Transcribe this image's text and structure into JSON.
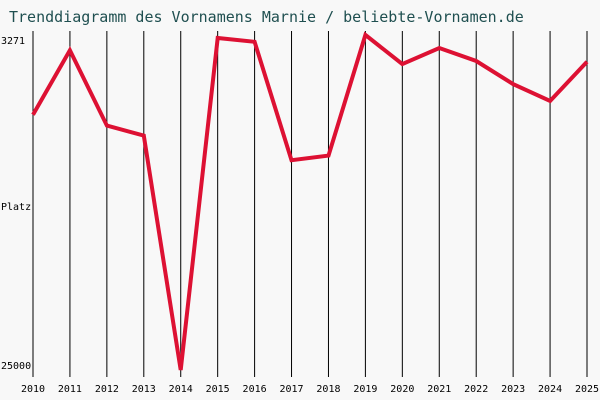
{
  "chart_data": {
    "type": "line",
    "title": "Trenddiagramm des Vornamens Marnie / beliebte-Vornamen.de",
    "xlabel": "",
    "ylabel": "Platz",
    "y_top_label": "3271",
    "y_bottom_label": "25000",
    "y_axis_inverted": true,
    "ylim": [
      3271,
      25000
    ],
    "categories": [
      "2010",
      "2011",
      "2012",
      "2013",
      "2014",
      "2015",
      "2016",
      "2017",
      "2018",
      "2019",
      "2020",
      "2021",
      "2022",
      "2023",
      "2024",
      "2025"
    ],
    "series": [
      {
        "values": [
          8400,
          4200,
          9100,
          9750,
          25000,
          3400,
          3650,
          11350,
          11050,
          3200,
          5100,
          4050,
          4900,
          6400,
          7500,
          4950
        ],
        "color": "#dd1133"
      }
    ],
    "grid": "vertical lines at each year",
    "legend": "none"
  }
}
